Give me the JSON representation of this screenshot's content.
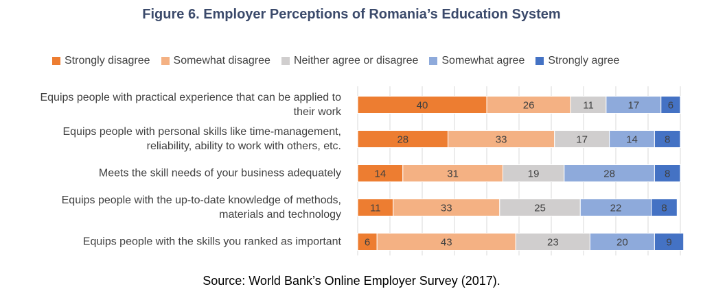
{
  "title": "Figure 6. Employer Perceptions of Romania’s Education System",
  "source": "Source: World Bank’s Online Employer Survey (2017).",
  "chart_data": {
    "type": "bar",
    "orientation": "horizontal",
    "stacked": true,
    "legend_position": "top",
    "xlim": [
      0,
      100
    ],
    "grid": "vertical",
    "categories": [
      [
        "Equips people with practical experience that can be applied to",
        "their work"
      ],
      [
        "Equips people with personal skills like time-management,",
        "reliability, ability to work with others, etc."
      ],
      [
        "Meets the skill needs of your business adequately"
      ],
      [
        "Equips people with the up-to-date knowledge of methods,",
        "materials and technology"
      ],
      [
        "Equips people with the skills you ranked as important"
      ]
    ],
    "series": [
      {
        "name": "Strongly disagree",
        "color": "#ed7d31",
        "values": [
          40,
          28,
          14,
          11,
          6
        ]
      },
      {
        "name": "Somewhat disagree",
        "color": "#f4b183",
        "values": [
          26,
          33,
          31,
          33,
          43
        ]
      },
      {
        "name": "Neither agree or disagree",
        "color": "#d0cece",
        "values": [
          11,
          17,
          19,
          25,
          23
        ]
      },
      {
        "name": "Somewhat agree",
        "color": "#8eaadb",
        "values": [
          17,
          14,
          28,
          22,
          20
        ]
      },
      {
        "name": "Strongly agree",
        "color": "#4472c4",
        "values": [
          6,
          8,
          8,
          8,
          9
        ]
      }
    ]
  }
}
